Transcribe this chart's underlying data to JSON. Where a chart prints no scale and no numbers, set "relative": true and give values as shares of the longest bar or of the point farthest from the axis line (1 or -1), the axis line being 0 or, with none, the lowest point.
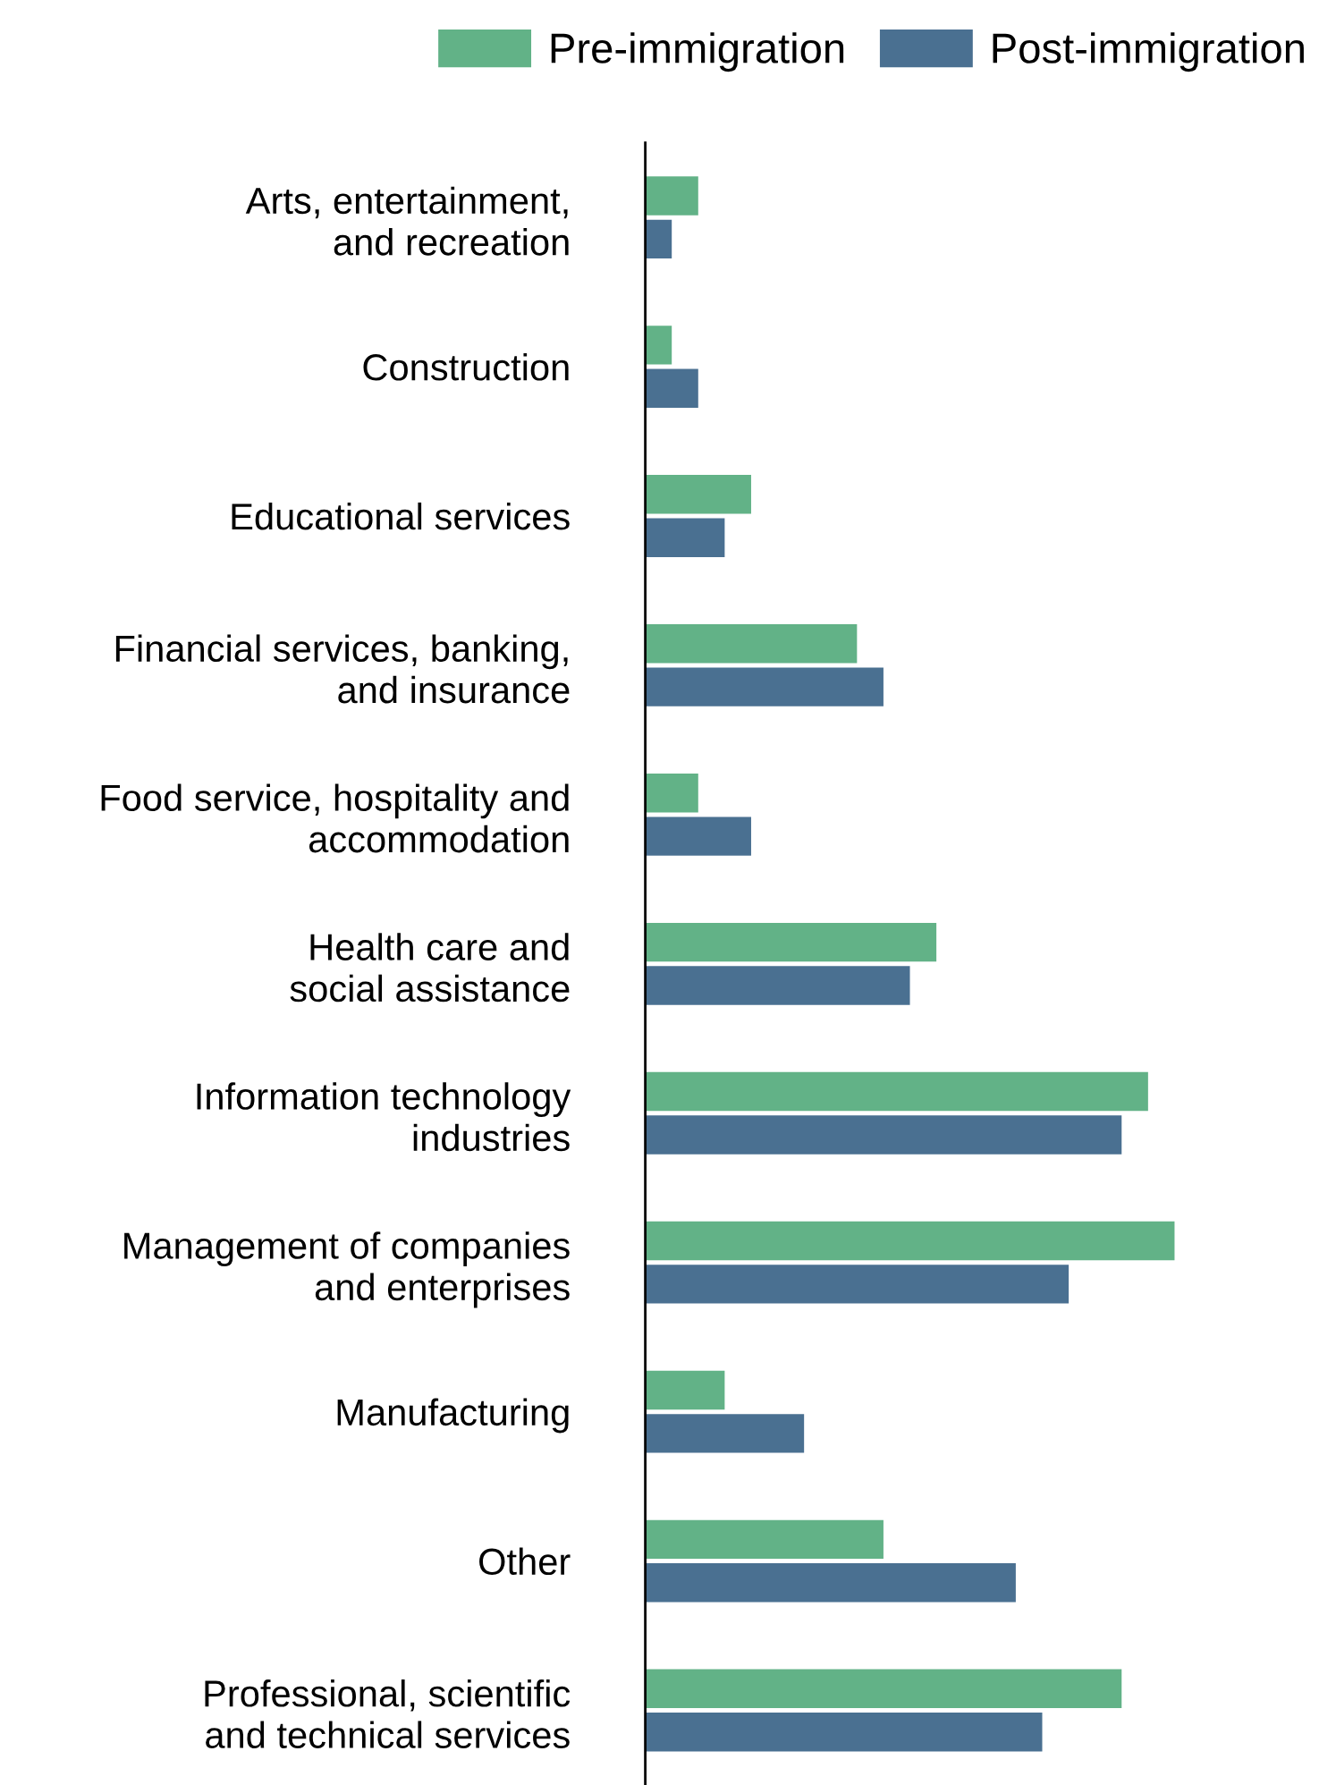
{
  "chart_data": {
    "type": "bar",
    "orientation": "horizontal",
    "relative": true,
    "legend": "top",
    "grid": false,
    "categories": [
      "Arts, entertainment,\nand recreation",
      "Construction",
      "Educational services",
      "Financial services, banking,\nand insurance",
      "Food service, hospitality and\naccommodation",
      "Health care and\nsocial assistance",
      "Information technology\nindustries",
      "Management of companies\nand enterprises",
      "Manufacturing",
      "Other",
      "Professional, scientific\nand technical services"
    ],
    "series": [
      {
        "name": "Pre-immigration",
        "color": "#62b287",
        "values": [
          0.1,
          0.05,
          0.2,
          0.4,
          0.1,
          0.55,
          0.95,
          1,
          0.15,
          0.45,
          0.9
        ]
      },
      {
        "name": "Post-immigration",
        "color": "#4a7091",
        "values": [
          0.05,
          0.1,
          0.15,
          0.45,
          0.2,
          0.5,
          0.9,
          0.8,
          0.3,
          0.7,
          0.75
        ]
      }
    ]
  }
}
